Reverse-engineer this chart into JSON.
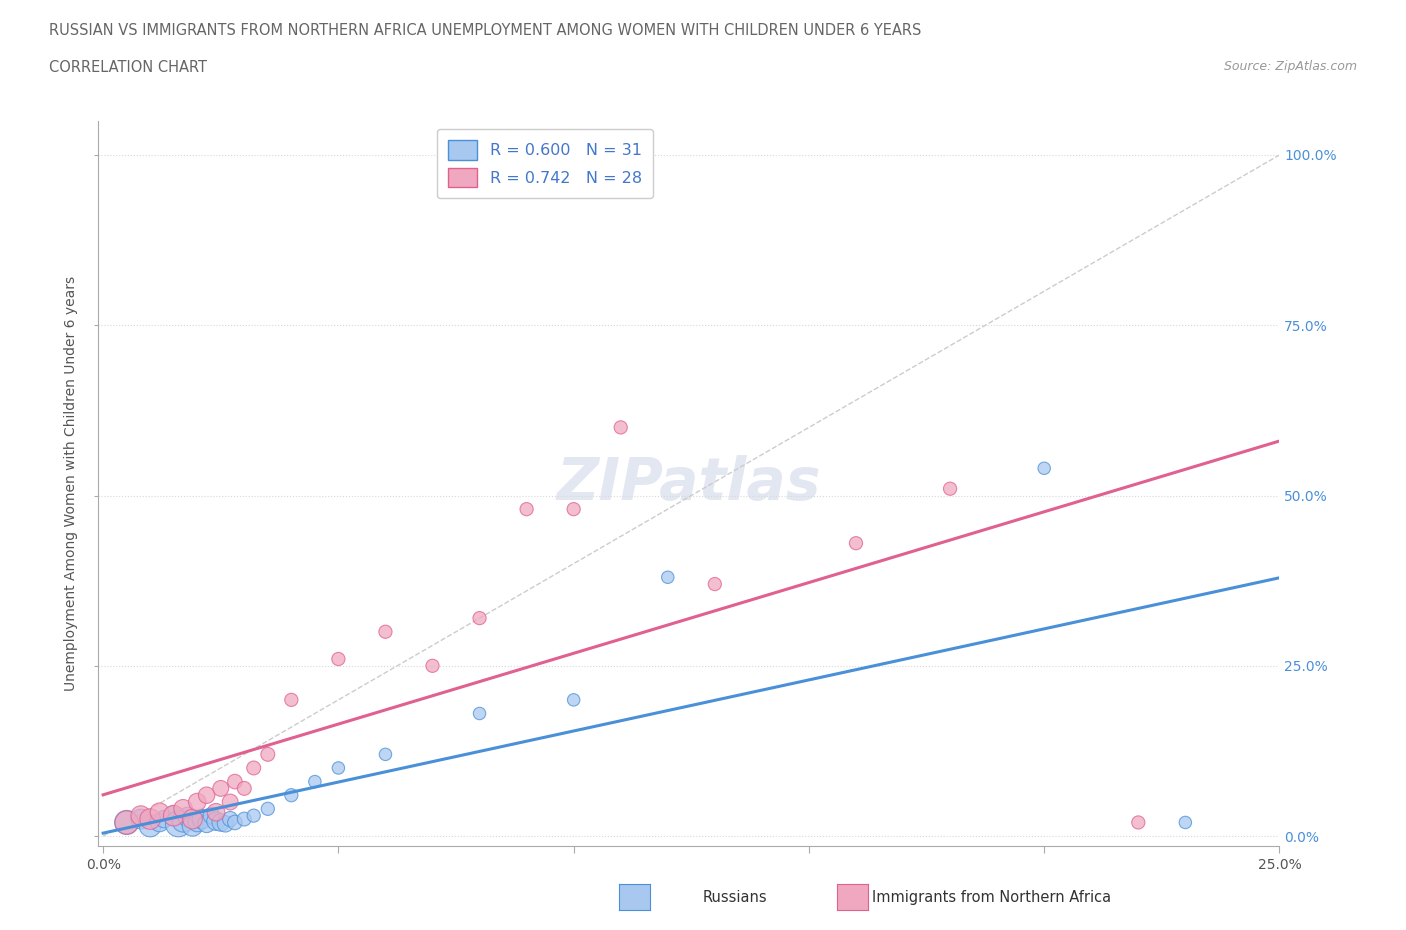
{
  "title_line1": "RUSSIAN VS IMMIGRANTS FROM NORTHERN AFRICA UNEMPLOYMENT AMONG WOMEN WITH CHILDREN UNDER 6 YEARS",
  "title_line2": "CORRELATION CHART",
  "source": "Source: ZipAtlas.com",
  "ylabel": "Unemployment Among Women with Children Under 6 years",
  "blue_R": 0.6,
  "blue_N": 31,
  "pink_R": 0.742,
  "pink_N": 28,
  "blue_color": "#a8c8f0",
  "pink_color": "#f0a8c0",
  "blue_line_color": "#4a90d9",
  "pink_line_color": "#e06090",
  "trend_line_color": "#cccccc",
  "watermark": "ZIPatlas",
  "background_color": "#ffffff",
  "grid_color": "#d8d8d8",
  "xmax": 0.25,
  "ymax": 1.05,
  "yticks": [
    0.0,
    0.25,
    0.5,
    0.75,
    1.0
  ],
  "ytick_labels_right": [
    "0.0%",
    "25.0%",
    "50.0%",
    "75.0%",
    "100.0%"
  ],
  "xtick_vals": [
    0.0,
    0.05,
    0.1,
    0.15,
    0.2,
    0.25
  ],
  "xtick_labels": [
    "0.0%",
    "",
    "",
    "",
    "",
    "25.0%"
  ],
  "blue_scatter_x": [
    0.005,
    0.008,
    0.01,
    0.012,
    0.013,
    0.015,
    0.016,
    0.017,
    0.018,
    0.019,
    0.02,
    0.021,
    0.022,
    0.023,
    0.024,
    0.025,
    0.026,
    0.027,
    0.028,
    0.03,
    0.032,
    0.035,
    0.04,
    0.045,
    0.05,
    0.06,
    0.08,
    0.1,
    0.12,
    0.2,
    0.23
  ],
  "blue_scatter_y": [
    0.02,
    0.025,
    0.015,
    0.02,
    0.025,
    0.03,
    0.018,
    0.022,
    0.028,
    0.015,
    0.02,
    0.025,
    0.018,
    0.03,
    0.022,
    0.02,
    0.018,
    0.025,
    0.02,
    0.025,
    0.03,
    0.04,
    0.06,
    0.08,
    0.1,
    0.12,
    0.18,
    0.2,
    0.38,
    0.54,
    0.02
  ],
  "blue_scatter_size": [
    300,
    200,
    250,
    180,
    160,
    200,
    350,
    250,
    200,
    220,
    180,
    200,
    160,
    140,
    180,
    160,
    140,
    120,
    110,
    100,
    90,
    90,
    90,
    80,
    80,
    80,
    80,
    80,
    80,
    80,
    80
  ],
  "pink_scatter_x": [
    0.005,
    0.008,
    0.01,
    0.012,
    0.015,
    0.017,
    0.019,
    0.02,
    0.022,
    0.024,
    0.025,
    0.027,
    0.028,
    0.03,
    0.032,
    0.035,
    0.04,
    0.05,
    0.06,
    0.07,
    0.08,
    0.09,
    0.1,
    0.11,
    0.13,
    0.16,
    0.18,
    0.22
  ],
  "pink_scatter_y": [
    0.02,
    0.03,
    0.025,
    0.035,
    0.03,
    0.04,
    0.025,
    0.05,
    0.06,
    0.035,
    0.07,
    0.05,
    0.08,
    0.07,
    0.1,
    0.12,
    0.2,
    0.26,
    0.3,
    0.25,
    0.32,
    0.48,
    0.48,
    0.6,
    0.37,
    0.43,
    0.51,
    0.02
  ],
  "pink_scatter_size": [
    280,
    200,
    220,
    180,
    220,
    180,
    200,
    160,
    140,
    160,
    130,
    130,
    110,
    100,
    100,
    100,
    90,
    90,
    90,
    90,
    90,
    90,
    90,
    90,
    90,
    90,
    90,
    90
  ]
}
